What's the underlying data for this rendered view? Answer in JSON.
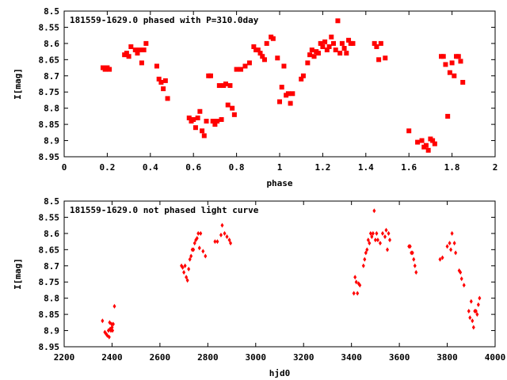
{
  "chart_data": [
    {
      "type": "scatter",
      "title": "181559-1629.0 phased with P=310.0day",
      "xlabel": "phase",
      "ylabel": "I[mag]",
      "xlim": [
        0,
        2
      ],
      "ylim": [
        8.5,
        8.95
      ],
      "y_inverted": true,
      "xticks": [
        "0",
        "0.2",
        "0.4",
        "0.6",
        "0.8",
        "1",
        "1.2",
        "1.4",
        "1.6",
        "1.8",
        "2"
      ],
      "yticks": [
        "8.5",
        "8.55",
        "8.6",
        "8.65",
        "8.7",
        "8.75",
        "8.8",
        "8.85",
        "8.9",
        "8.95"
      ],
      "marker": "square",
      "color": "#ff0000",
      "points": [
        [
          0.18,
          8.675
        ],
        [
          0.19,
          8.68
        ],
        [
          0.2,
          8.675
        ],
        [
          0.21,
          8.68
        ],
        [
          0.28,
          8.635
        ],
        [
          0.29,
          8.63
        ],
        [
          0.3,
          8.64
        ],
        [
          0.31,
          8.61
        ],
        [
          0.33,
          8.62
        ],
        [
          0.34,
          8.63
        ],
        [
          0.35,
          8.62
        ],
        [
          0.36,
          8.66
        ],
        [
          0.37,
          8.62
        ],
        [
          0.38,
          8.6
        ],
        [
          0.43,
          8.67
        ],
        [
          0.44,
          8.71
        ],
        [
          0.45,
          8.72
        ],
        [
          0.46,
          8.74
        ],
        [
          0.47,
          8.715
        ],
        [
          0.48,
          8.77
        ],
        [
          0.58,
          8.83
        ],
        [
          0.59,
          8.84
        ],
        [
          0.6,
          8.835
        ],
        [
          0.61,
          8.86
        ],
        [
          0.62,
          8.83
        ],
        [
          0.63,
          8.81
        ],
        [
          0.64,
          8.87
        ],
        [
          0.65,
          8.885
        ],
        [
          0.66,
          8.84
        ],
        [
          0.67,
          8.7
        ],
        [
          0.68,
          8.7
        ],
        [
          0.69,
          8.84
        ],
        [
          0.7,
          8.85
        ],
        [
          0.71,
          8.84
        ],
        [
          0.72,
          8.73
        ],
        [
          0.73,
          8.835
        ],
        [
          0.74,
          8.73
        ],
        [
          0.75,
          8.725
        ],
        [
          0.76,
          8.79
        ],
        [
          0.77,
          8.73
        ],
        [
          0.78,
          8.8
        ],
        [
          0.79,
          8.82
        ],
        [
          0.8,
          8.68
        ],
        [
          0.82,
          8.68
        ],
        [
          0.84,
          8.67
        ],
        [
          0.86,
          8.66
        ],
        [
          0.88,
          8.61
        ],
        [
          0.89,
          8.62
        ],
        [
          0.9,
          8.62
        ],
        [
          0.91,
          8.63
        ],
        [
          0.92,
          8.64
        ],
        [
          0.93,
          8.65
        ],
        [
          0.94,
          8.6
        ],
        [
          0.96,
          8.58
        ],
        [
          0.97,
          8.585
        ],
        [
          0.99,
          8.645
        ],
        [
          1.0,
          8.78
        ],
        [
          1.01,
          8.735
        ],
        [
          1.02,
          8.67
        ],
        [
          1.03,
          8.76
        ],
        [
          1.04,
          8.755
        ],
        [
          1.05,
          8.785
        ],
        [
          1.06,
          8.755
        ],
        [
          1.1,
          8.71
        ],
        [
          1.11,
          8.7
        ],
        [
          1.13,
          8.66
        ],
        [
          1.14,
          8.635
        ],
        [
          1.15,
          8.62
        ],
        [
          1.16,
          8.64
        ],
        [
          1.17,
          8.625
        ],
        [
          1.18,
          8.63
        ],
        [
          1.19,
          8.6
        ],
        [
          1.2,
          8.61
        ],
        [
          1.21,
          8.595
        ],
        [
          1.22,
          8.62
        ],
        [
          1.23,
          8.61
        ],
        [
          1.24,
          8.58
        ],
        [
          1.25,
          8.6
        ],
        [
          1.26,
          8.62
        ],
        [
          1.27,
          8.53
        ],
        [
          1.28,
          8.63
        ],
        [
          1.29,
          8.6
        ],
        [
          1.3,
          8.615
        ],
        [
          1.31,
          8.63
        ],
        [
          1.32,
          8.59
        ],
        [
          1.33,
          8.6
        ],
        [
          1.34,
          8.6
        ],
        [
          1.44,
          8.6
        ],
        [
          1.45,
          8.61
        ],
        [
          1.46,
          8.65
        ],
        [
          1.47,
          8.6
        ],
        [
          1.49,
          8.645
        ],
        [
          1.6,
          8.87
        ],
        [
          1.64,
          8.905
        ],
        [
          1.66,
          8.9
        ],
        [
          1.67,
          8.92
        ],
        [
          1.68,
          8.915
        ],
        [
          1.69,
          8.93
        ],
        [
          1.7,
          8.895
        ],
        [
          1.71,
          8.9
        ],
        [
          1.72,
          8.91
        ],
        [
          1.75,
          8.64
        ],
        [
          1.76,
          8.64
        ],
        [
          1.77,
          8.665
        ],
        [
          1.78,
          8.825
        ],
        [
          1.79,
          8.69
        ],
        [
          1.8,
          8.66
        ],
        [
          1.81,
          8.7
        ],
        [
          1.82,
          8.64
        ],
        [
          1.83,
          8.64
        ],
        [
          1.84,
          8.655
        ],
        [
          1.85,
          8.72
        ]
      ]
    },
    {
      "type": "scatter",
      "title": "181559-1629.0 not phased light curve",
      "xlabel": "hjd0",
      "ylabel": "I[mag]",
      "xlim": [
        2200,
        4000
      ],
      "ylim": [
        8.5,
        8.95
      ],
      "y_inverted": true,
      "xticks": [
        "2200",
        "2400",
        "2600",
        "2800",
        "3000",
        "3200",
        "3400",
        "3600",
        "3800",
        "4000"
      ],
      "yticks": [
        "8.5",
        "8.55",
        "8.6",
        "8.65",
        "8.7",
        "8.75",
        "8.8",
        "8.85",
        "8.9",
        "8.95"
      ],
      "marker": "diamond",
      "color": "#ff0000",
      "points": [
        [
          2360,
          8.87
        ],
        [
          2370,
          8.905
        ],
        [
          2375,
          8.91
        ],
        [
          2380,
          8.915
        ],
        [
          2385,
          8.9
        ],
        [
          2388,
          8.92
        ],
        [
          2390,
          8.875
        ],
        [
          2392,
          8.895
        ],
        [
          2395,
          8.9
        ],
        [
          2398,
          8.88
        ],
        [
          2400,
          8.89
        ],
        [
          2402,
          8.9
        ],
        [
          2405,
          8.88
        ],
        [
          2410,
          8.825
        ],
        [
          2690,
          8.7
        ],
        [
          2695,
          8.705
        ],
        [
          2700,
          8.72
        ],
        [
          2705,
          8.7
        ],
        [
          2710,
          8.735
        ],
        [
          2715,
          8.745
        ],
        [
          2720,
          8.71
        ],
        [
          2725,
          8.68
        ],
        [
          2730,
          8.67
        ],
        [
          2735,
          8.65
        ],
        [
          2740,
          8.65
        ],
        [
          2745,
          8.63
        ],
        [
          2750,
          8.62
        ],
        [
          2755,
          8.615
        ],
        [
          2760,
          8.6
        ],
        [
          2765,
          8.645
        ],
        [
          2770,
          8.6
        ],
        [
          2780,
          8.655
        ],
        [
          2790,
          8.67
        ],
        [
          2830,
          8.625
        ],
        [
          2840,
          8.625
        ],
        [
          2855,
          8.605
        ],
        [
          2860,
          8.575
        ],
        [
          2870,
          8.6
        ],
        [
          2880,
          8.61
        ],
        [
          2890,
          8.62
        ],
        [
          2895,
          8.63
        ],
        [
          3410,
          8.785
        ],
        [
          3415,
          8.735
        ],
        [
          3420,
          8.75
        ],
        [
          3425,
          8.785
        ],
        [
          3430,
          8.755
        ],
        [
          3435,
          8.76
        ],
        [
          3450,
          8.7
        ],
        [
          3455,
          8.68
        ],
        [
          3460,
          8.66
        ],
        [
          3465,
          8.65
        ],
        [
          3470,
          8.62
        ],
        [
          3475,
          8.63
        ],
        [
          3480,
          8.6
        ],
        [
          3485,
          8.61
        ],
        [
          3490,
          8.6
        ],
        [
          3495,
          8.53
        ],
        [
          3500,
          8.62
        ],
        [
          3505,
          8.6
        ],
        [
          3510,
          8.62
        ],
        [
          3520,
          8.63
        ],
        [
          3530,
          8.6
        ],
        [
          3540,
          8.61
        ],
        [
          3545,
          8.59
        ],
        [
          3550,
          8.65
        ],
        [
          3555,
          8.6
        ],
        [
          3560,
          8.62
        ],
        [
          3640,
          8.64
        ],
        [
          3645,
          8.64
        ],
        [
          3650,
          8.66
        ],
        [
          3655,
          8.66
        ],
        [
          3660,
          8.68
        ],
        [
          3665,
          8.7
        ],
        [
          3670,
          8.72
        ],
        [
          3770,
          8.68
        ],
        [
          3780,
          8.675
        ],
        [
          3800,
          8.64
        ],
        [
          3810,
          8.63
        ],
        [
          3815,
          8.65
        ],
        [
          3820,
          8.6
        ],
        [
          3830,
          8.63
        ],
        [
          3835,
          8.66
        ],
        [
          3850,
          8.715
        ],
        [
          3855,
          8.72
        ],
        [
          3860,
          8.74
        ],
        [
          3870,
          8.76
        ],
        [
          3890,
          8.84
        ],
        [
          3895,
          8.86
        ],
        [
          3900,
          8.81
        ],
        [
          3905,
          8.87
        ],
        [
          3910,
          8.89
        ],
        [
          3915,
          8.84
        ],
        [
          3920,
          8.84
        ],
        [
          3925,
          8.85
        ],
        [
          3930,
          8.82
        ],
        [
          3935,
          8.8
        ]
      ]
    }
  ]
}
